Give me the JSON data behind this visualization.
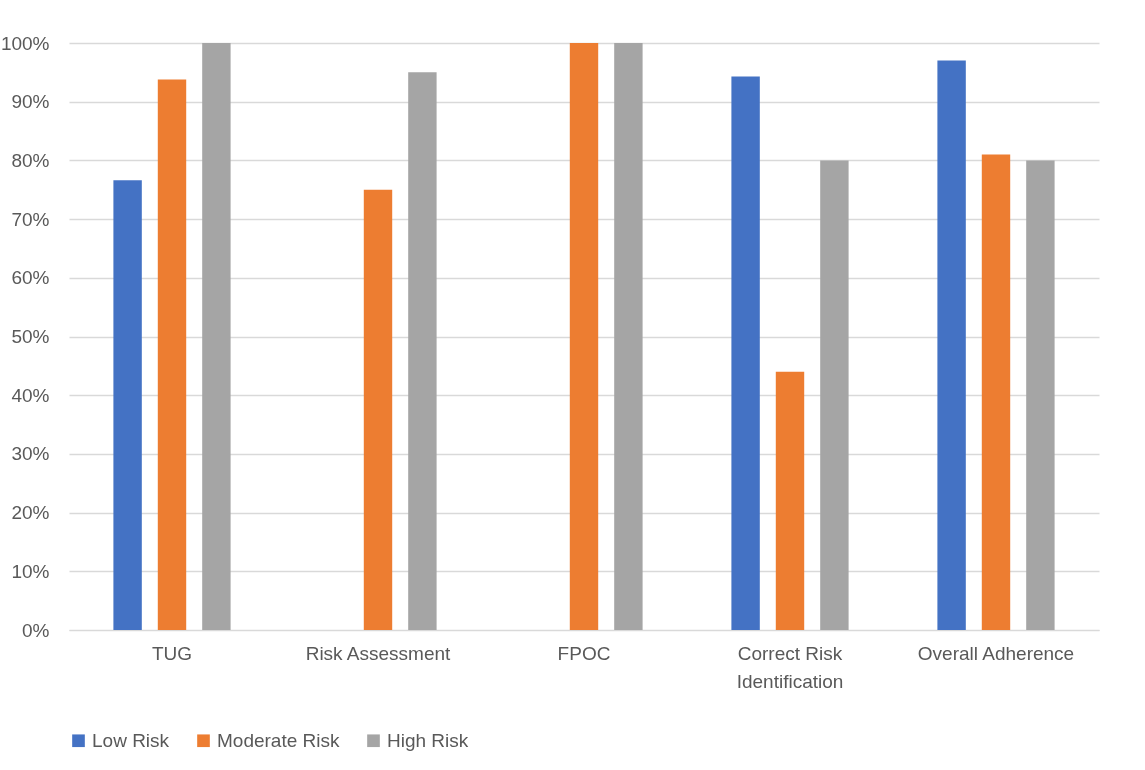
{
  "chart_data": {
    "type": "bar",
    "categories": [
      "TUG",
      "Risk Assessment",
      "FPOC",
      "Correct Risk Identification",
      "Overall Adherence"
    ],
    "series": [
      {
        "name": "Low Risk",
        "color": "#4472c4",
        "values": [
          76.6,
          null,
          null,
          94.3,
          97
        ]
      },
      {
        "name": "Moderate Risk",
        "color": "#ed7d31",
        "values": [
          93.8,
          75,
          100,
          44,
          81
        ]
      },
      {
        "name": "High Risk",
        "color": "#a5a5a5",
        "values": [
          100,
          95,
          100,
          80,
          80
        ]
      }
    ],
    "ylim": [
      0,
      100
    ],
    "yticks": [
      {
        "value": 0,
        "label": "0%"
      },
      {
        "value": 10,
        "label": "10%"
      },
      {
        "value": 20,
        "label": "20%"
      },
      {
        "value": 30,
        "label": "30%"
      },
      {
        "value": 40,
        "label": "40%"
      },
      {
        "value": 50,
        "label": "50%"
      },
      {
        "value": 60,
        "label": "60%"
      },
      {
        "value": 70,
        "label": "70%"
      },
      {
        "value": 80,
        "label": "80%"
      },
      {
        "value": 90,
        "label": "90%"
      },
      {
        "value": 100,
        "label": "100%"
      }
    ],
    "grid": "y",
    "legend": "bottom"
  }
}
